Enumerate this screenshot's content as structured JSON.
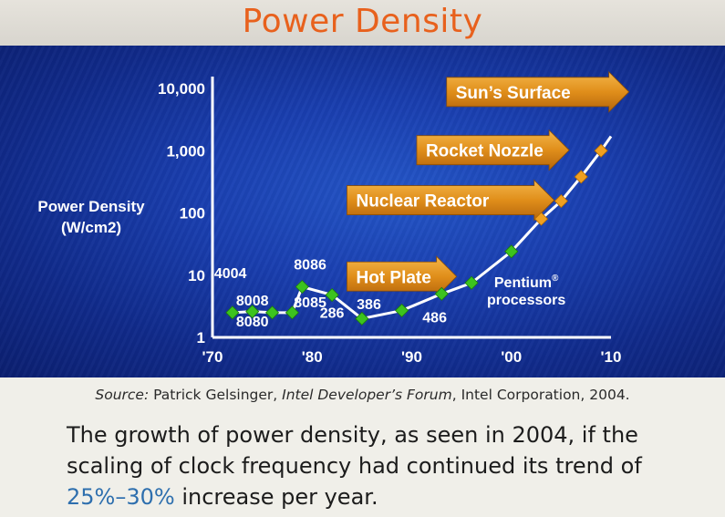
{
  "header": {
    "title": "Power Density"
  },
  "colors": {
    "title": "#e8611d",
    "marker_actual": "#3cc31e",
    "marker_projected": "#f0a020",
    "arrow_fill": "#e08e1a",
    "accent_text": "#2e6fae"
  },
  "chart_data": {
    "type": "line",
    "ylabel": "Power Density",
    "ylabel_unit": "(W/cm2)",
    "yscale": "log",
    "ylim": [
      1,
      10000
    ],
    "y_ticks": [
      {
        "value": 1,
        "label": "1"
      },
      {
        "value": 10,
        "label": "10"
      },
      {
        "value": 100,
        "label": "100"
      },
      {
        "value": 1000,
        "label": "1,000"
      },
      {
        "value": 10000,
        "label": "10,000"
      }
    ],
    "xlim": [
      1970,
      2010
    ],
    "x_ticks": [
      {
        "value": 1970,
        "label": "'70"
      },
      {
        "value": 1980,
        "label": "'80"
      },
      {
        "value": 1990,
        "label": "'90"
      },
      {
        "value": 2000,
        "label": "'00"
      },
      {
        "value": 2010,
        "label": "'10"
      }
    ],
    "series": [
      {
        "name": "Intel processors",
        "points": [
          {
            "x": 1972,
            "y": 2.5
          },
          {
            "x": 1974,
            "y": 2.6
          },
          {
            "x": 1976,
            "y": 2.5
          },
          {
            "x": 1978,
            "y": 2.5
          },
          {
            "x": 1979,
            "y": 6.5
          },
          {
            "x": 1982,
            "y": 4.8
          },
          {
            "x": 1985,
            "y": 2.0
          },
          {
            "x": 1989,
            "y": 2.7
          },
          {
            "x": 1993,
            "y": 5.0
          },
          {
            "x": 1996,
            "y": 7.5
          },
          {
            "x": 2000,
            "y": 24
          },
          {
            "x": 2003,
            "y": 80
          },
          {
            "x": 2005,
            "y": 155
          },
          {
            "x": 2007,
            "y": 380
          },
          {
            "x": 2009,
            "y": 1000
          },
          {
            "x": 2010,
            "y": 1700
          }
        ],
        "projected_from_index": 11
      }
    ],
    "point_labels": [
      {
        "text": "4004",
        "x": 1971.8,
        "y": 11.0
      },
      {
        "text": "8008",
        "x": 1974.0,
        "y": 4.0
      },
      {
        "text": "8080",
        "x": 1974.0,
        "y": 1.85
      },
      {
        "text": "8086",
        "x": 1979.8,
        "y": 15.0
      },
      {
        "text": "8085",
        "x": 1979.8,
        "y": 3.7
      },
      {
        "text": "286",
        "x": 1982.0,
        "y": 2.55
      },
      {
        "text": "386",
        "x": 1985.7,
        "y": 3.5
      },
      {
        "text": "486",
        "x": 1992.3,
        "y": 2.15
      },
      {
        "text": "Pentium®",
        "x": 2001.5,
        "y": 7.8
      },
      {
        "text": "processors",
        "x": 2001.5,
        "y": 4.1
      }
    ],
    "annotations": [
      {
        "text": "Hot Plate",
        "y": 9.5,
        "x_start": 1983.5,
        "x_end": 1994.5
      },
      {
        "text": "Nuclear Reactor",
        "y": 160,
        "x_start": 1983.5,
        "x_end": 2004.3
      },
      {
        "text": "Rocket Nozzle",
        "y": 1020,
        "x_start": 1990.5,
        "x_end": 2005.8
      },
      {
        "text": "Sun’s Surface",
        "y": 8800,
        "x_start": 1993.5,
        "x_end": 2011.8
      }
    ]
  },
  "source": {
    "prefix": "Source:",
    "author": " Patrick Gelsinger, ",
    "venue": "Intel Developer’s Forum",
    "suffix": ", Intel Corporation, 2004."
  },
  "caption": {
    "text_before": "The growth of power density, as seen in 2004, if the scaling of clock frequency had continued its trend of ",
    "highlight": "25%–30%",
    "text_after": " increase per year."
  }
}
